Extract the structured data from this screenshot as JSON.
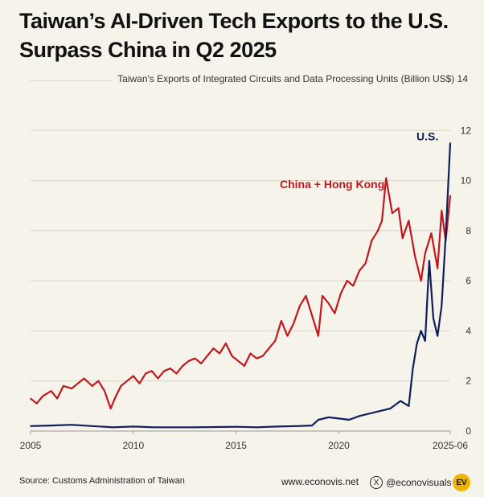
{
  "colors": {
    "us": "#0f1f5c",
    "china": "#c0181f",
    "grid": "#d8d3c6",
    "text": "#333333"
  },
  "chart_data": {
    "type": "line",
    "title": "Taiwan’s AI-Driven Tech Exports to the U.S. Surpass China in Q2 2025",
    "title_lines": [
      "Taiwan’s AI-Driven Tech Exports to the U.S.",
      "Surpass China in Q2 2025"
    ],
    "ylabel": "Taiwan's Exports of Integrated Circuits and Data Processing Units (Billion US$)",
    "ylim": [
      0,
      14
    ],
    "yticks": [
      "0",
      "2",
      "4",
      "6",
      "8",
      "10",
      "12",
      "14"
    ],
    "xlim": [
      2005.0,
      2025.42
    ],
    "xticks": [
      {
        "value": 2005,
        "label": "2005"
      },
      {
        "value": 2010,
        "label": "2010"
      },
      {
        "value": 2015,
        "label": "2015"
      },
      {
        "value": 2020,
        "label": "2020"
      },
      {
        "value": 2025.42,
        "label": "2025-06"
      }
    ],
    "series": [
      {
        "name": "China + Hong Kong",
        "label": "China + Hong Kong",
        "color_key": "china",
        "x": [
          2005.0,
          2005.3,
          2005.6,
          2006.0,
          2006.3,
          2006.6,
          2007.0,
          2007.3,
          2007.6,
          2008.0,
          2008.3,
          2008.6,
          2008.9,
          2009.1,
          2009.4,
          2009.7,
          2010.0,
          2010.3,
          2010.6,
          2010.9,
          2011.2,
          2011.5,
          2011.8,
          2012.1,
          2012.4,
          2012.7,
          2013.0,
          2013.3,
          2013.6,
          2013.9,
          2014.2,
          2014.5,
          2014.8,
          2015.1,
          2015.4,
          2015.7,
          2016.0,
          2016.3,
          2016.6,
          2016.9,
          2017.2,
          2017.5,
          2017.8,
          2018.1,
          2018.4,
          2018.7,
          2019.0,
          2019.2,
          2019.5,
          2019.8,
          2020.1,
          2020.4,
          2020.7,
          2021.0,
          2021.3,
          2021.6,
          2021.9,
          2022.1,
          2022.3,
          2022.6,
          2022.9,
          2023.1,
          2023.4,
          2023.7,
          2024.0,
          2024.2,
          2024.5,
          2024.8,
          2025.0,
          2025.2,
          2025.42
        ],
        "values": [
          1.3,
          1.1,
          1.4,
          1.6,
          1.3,
          1.8,
          1.7,
          1.9,
          2.1,
          1.8,
          2.0,
          1.6,
          0.9,
          1.3,
          1.8,
          2.0,
          2.2,
          1.9,
          2.3,
          2.4,
          2.1,
          2.4,
          2.5,
          2.3,
          2.6,
          2.8,
          2.9,
          2.7,
          3.0,
          3.3,
          3.1,
          3.5,
          3.0,
          2.8,
          2.6,
          3.1,
          2.9,
          3.0,
          3.3,
          3.6,
          4.4,
          3.8,
          4.3,
          5.0,
          5.4,
          4.6,
          3.8,
          5.4,
          5.1,
          4.7,
          5.5,
          6.0,
          5.8,
          6.4,
          6.7,
          7.6,
          8.0,
          8.4,
          10.1,
          8.7,
          8.9,
          7.7,
          8.4,
          7.0,
          6.0,
          7.1,
          7.9,
          6.5,
          8.8,
          7.6,
          9.4
        ]
      },
      {
        "name": "U.S.",
        "label": "U.S.",
        "color_key": "us",
        "x": [
          2005.0,
          2006.0,
          2007.0,
          2008.0,
          2009.0,
          2010.0,
          2011.0,
          2012.0,
          2013.0,
          2014.0,
          2015.0,
          2016.0,
          2017.0,
          2018.0,
          2018.7,
          2019.0,
          2019.5,
          2020.0,
          2020.5,
          2021.0,
          2021.5,
          2022.0,
          2022.5,
          2023.0,
          2023.4,
          2023.6,
          2023.8,
          2024.0,
          2024.2,
          2024.4,
          2024.6,
          2024.8,
          2025.0,
          2025.2,
          2025.42
        ],
        "values": [
          0.2,
          0.22,
          0.25,
          0.2,
          0.15,
          0.18,
          0.15,
          0.15,
          0.15,
          0.16,
          0.17,
          0.15,
          0.18,
          0.2,
          0.22,
          0.45,
          0.55,
          0.5,
          0.45,
          0.6,
          0.7,
          0.8,
          0.9,
          1.2,
          1.0,
          2.5,
          3.5,
          4.0,
          3.6,
          6.8,
          4.5,
          3.8,
          5.0,
          7.8,
          11.5
        ]
      }
    ]
  },
  "footer": {
    "source": "Source: Customs Administration of Taiwan",
    "website": "www.econovis.net",
    "social": "@econovisuals",
    "logo": "EV"
  }
}
